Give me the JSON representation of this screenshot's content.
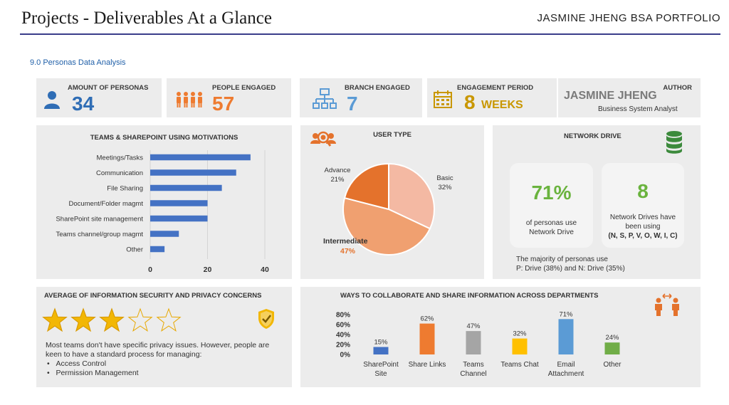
{
  "header": {
    "title": "Projects - Deliverables At a Glance",
    "portfolio": "JASMINE JHENG BSA PORTFOLIO",
    "section": "9.0 Personas Data Analysis"
  },
  "stats": {
    "personas": {
      "label": "AMOUNT OF PERSONAS",
      "value": "34"
    },
    "people": {
      "label": "PEOPLE ENGAGED",
      "value": "57"
    },
    "branch": {
      "label": "BRANCH ENGAGED",
      "value": "7"
    },
    "period": {
      "label": "ENGAGEMENT PERIOD",
      "value": "8",
      "unit": "WEEKS"
    },
    "author": {
      "label": "AUTHOR",
      "name": "JASMINE JHENG",
      "role": "Business System Analyst"
    }
  },
  "network": {
    "title": "NETWORK DRIVE",
    "pct": "71%",
    "pct_text_1": "of personas use",
    "pct_text_2": "Network Drive",
    "count": "8",
    "count_text_1": "Network Drives have",
    "count_text_2": "been using",
    "count_text_3": "(N, S, P, V, O, W, I, C)",
    "note_1": "The majority of personas use",
    "note_2": "P: Drive (38%) and N: Drive (35%)"
  },
  "security": {
    "title": "AVERAGE OF INFORMATION SECURITY AND PRIVACY CONCERNS",
    "rating": 3,
    "max": 5,
    "text_1": "Most teams don't have specific privacy issues. However, people are",
    "text_2": "keen to have a standard process for managing:",
    "bullets": [
      "Access Control",
      "Permission Management"
    ]
  },
  "colors": {
    "blue": "#2f6db5",
    "orange": "#ee7b30",
    "bar_blue": "#4472c4",
    "star": "#f2b705"
  },
  "chart_data": [
    {
      "type": "bar",
      "orientation": "horizontal",
      "title": "TEAMS & SHAREPOINT USING MOTIVATIONS",
      "categories": [
        "Meetings/Tasks",
        "Communication",
        "File Sharing",
        "Document/Folder magmt",
        "SharePoint site management",
        "Teams channel/group magmt",
        "Other"
      ],
      "values": [
        35,
        30,
        25,
        20,
        20,
        10,
        5
      ],
      "xticks": [
        "0",
        "20",
        "40"
      ],
      "xlim": [
        0,
        40
      ]
    },
    {
      "type": "pie",
      "title": "USER TYPE",
      "slices": [
        {
          "label": "Basic",
          "value": 32,
          "pct_label": "32%",
          "color": "#f4b9a3"
        },
        {
          "label": "Intermediate",
          "value": 47,
          "pct_label": "47%",
          "color": "#f0a070"
        },
        {
          "label": "Advance",
          "value": 21,
          "pct_label": "21%",
          "color": "#e4722c"
        }
      ]
    },
    {
      "type": "bar",
      "title": "WAYS TO COLLABORATE AND SHARE INFORMATION ACROSS DEPARTMENTS",
      "categories": [
        {
          "line1": "SharePoint",
          "line2": "Site"
        },
        {
          "line1": "Share Links",
          "line2": ""
        },
        {
          "line1": "Teams",
          "line2": "Channel"
        },
        {
          "line1": "Teams Chat",
          "line2": ""
        },
        {
          "line1": "Email",
          "line2": "Attachment"
        },
        {
          "line1": "Other",
          "line2": ""
        }
      ],
      "values": [
        15,
        62,
        47,
        32,
        71,
        24
      ],
      "value_labels": [
        "15%",
        "62%",
        "47%",
        "32%",
        "71%",
        "24%"
      ],
      "colors": [
        "#4472c4",
        "#ee7b30",
        "#a5a5a5",
        "#ffc000",
        "#5b9bd5",
        "#70ad47"
      ],
      "yticks": [
        "80%",
        "60%",
        "40%",
        "20%",
        "0%"
      ],
      "ylim": [
        0,
        80
      ]
    }
  ]
}
